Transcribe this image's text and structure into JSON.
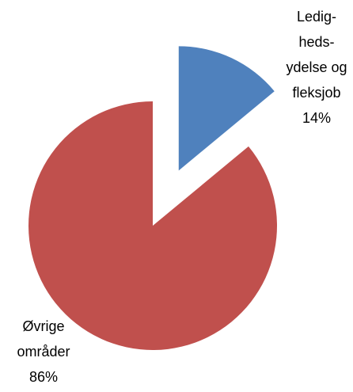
{
  "chart_data": {
    "type": "pie",
    "categories": [
      "Ledig-\nheds-\nydelse og\nfleksjob",
      "Øvrige\nområder"
    ],
    "values": [
      14,
      86
    ],
    "value_labels": [
      "14%",
      "86%"
    ],
    "colors": [
      "#4f81bd",
      "#c0504d"
    ]
  }
}
